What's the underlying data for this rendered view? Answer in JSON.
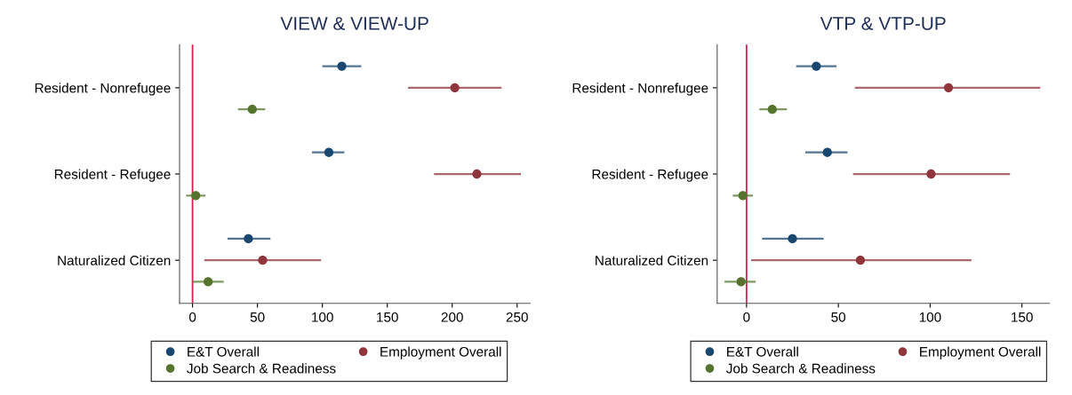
{
  "chart_data": [
    {
      "type": "scatter",
      "orientation": "horizontal",
      "title": "VIEW & VIEW-UP",
      "categories": [
        "Resident - Nonrefugee",
        "Resident - Refugee",
        "Naturalized Citizen"
      ],
      "xlim": [
        -10,
        260
      ],
      "xticks": [
        0,
        50,
        100,
        150,
        200,
        250
      ],
      "marker": "circle",
      "legend": "bottom",
      "grid": false,
      "ref_lines": [
        {
          "axis": "x",
          "value": 0,
          "color": "#d6204f"
        }
      ],
      "series": [
        {
          "name": "E&T Overall",
          "color": "#1a476f",
          "values": [
            115,
            105,
            43
          ],
          "errors": [
            [
              100,
              130
            ],
            [
              92,
              117
            ],
            [
              27,
              60
            ]
          ]
        },
        {
          "name": "Employment Overall",
          "color": "#90353b",
          "values": [
            202,
            219,
            54
          ],
          "errors": [
            [
              166,
              238
            ],
            [
              186,
              253
            ],
            [
              9,
              99
            ]
          ]
        },
        {
          "name": "Job Search & Readiness",
          "color": "#55752f",
          "values": [
            46,
            2.5,
            12
          ],
          "errors": [
            [
              35,
              56
            ],
            [
              -5,
              10
            ],
            [
              0,
              24
            ]
          ]
        }
      ]
    },
    {
      "type": "scatter",
      "orientation": "horizontal",
      "title": "VTP & VTP-UP",
      "categories": [
        "Resident - Nonrefugee",
        "Resident - Refugee",
        "Naturalized Citizen"
      ],
      "xlim": [
        -16,
        165
      ],
      "xticks": [
        0,
        50,
        100,
        150
      ],
      "marker": "circle",
      "legend": "bottom",
      "grid": false,
      "ref_lines": [
        {
          "axis": "x",
          "value": 0,
          "color": "#d6204f"
        }
      ],
      "series": [
        {
          "name": "E&T Overall",
          "color": "#1a476f",
          "values": [
            38,
            44,
            25
          ],
          "errors": [
            [
              27,
              49
            ],
            [
              32,
              55
            ],
            [
              8.5,
              42
            ]
          ]
        },
        {
          "name": "Employment Overall",
          "color": "#90353b",
          "values": [
            110,
            100.5,
            62
          ],
          "errors": [
            [
              59,
              160
            ],
            [
              58,
              143.5
            ],
            [
              2.5,
              122.5
            ]
          ]
        },
        {
          "name": "Job Search & Readiness",
          "color": "#55752f",
          "values": [
            14,
            -2,
            -3
          ],
          "errors": [
            [
              7,
              22
            ],
            [
              -7.5,
              3.5
            ],
            [
              -12,
              5
            ]
          ]
        }
      ]
    }
  ]
}
